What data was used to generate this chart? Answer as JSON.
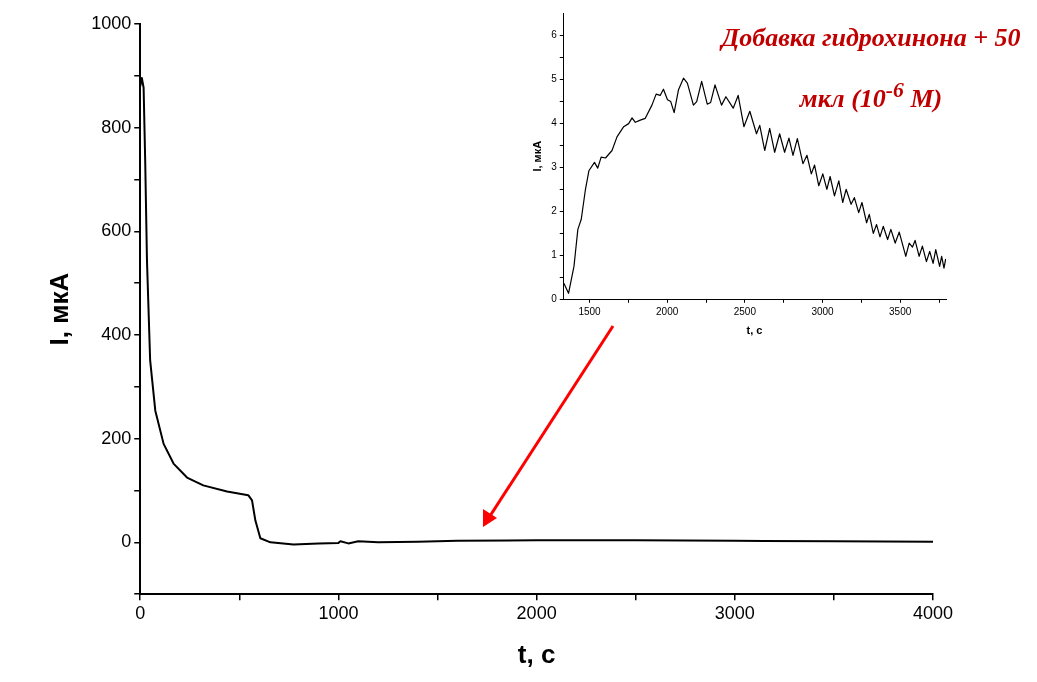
{
  "chart_data": [
    {
      "type": "line",
      "xlabel": "t, с",
      "ylabel": "I, мкА",
      "xlim": [
        0,
        4000
      ],
      "ylim": [
        -100,
        1000
      ],
      "xticks": [
        0,
        {
          "value": 500,
          "label": null
        },
        1000,
        {
          "value": 1500,
          "label": null
        },
        2000,
        {
          "value": 2500,
          "label": null
        },
        3000,
        {
          "value": 3500,
          "label": null
        },
        4000
      ],
      "yticks": [
        {
          "value": -100,
          "label": null
        },
        0,
        {
          "value": 100,
          "label": null
        },
        200,
        {
          "value": 300,
          "label": null
        },
        400,
        {
          "value": 500,
          "label": null
        },
        600,
        {
          "value": 700,
          "label": null
        },
        800,
        {
          "value": 900,
          "label": null
        },
        1000
      ],
      "grid": false,
      "legend": false,
      "marker": "none",
      "line_style": "solid",
      "series": [
        {
          "color": "#000000",
          "x": [
            0,
            8,
            17,
            25,
            34,
            50,
            76,
            118,
            168,
            236,
            318,
            438,
            545,
            564,
            581,
            606,
            657,
            773,
            900,
            1000,
            1010,
            1050,
            1100,
            1200,
            1400,
            1600,
            2000,
            2500,
            3000,
            3500,
            4000
          ],
          "values": [
            880,
            896,
            877,
            736,
            543,
            351,
            254,
            190,
            152,
            125,
            110,
            98,
            91,
            81,
            42,
            8,
            0,
            -4,
            -2,
            -1,
            2,
            -2,
            2,
            0,
            1,
            3,
            4,
            4,
            3,
            2,
            1
          ]
        }
      ]
    },
    {
      "type": "line",
      "xlabel": "t, с",
      "ylabel": "I, мкА",
      "xlim": [
        1330,
        3795
      ],
      "ylim": [
        0,
        6.5
      ],
      "xticks": [
        1500,
        {
          "value": 1750,
          "label": null
        },
        2000,
        {
          "value": 2250,
          "label": null
        },
        2500,
        {
          "value": 2750,
          "label": null
        },
        3000,
        {
          "value": 3250,
          "label": null
        },
        3500,
        {
          "value": 3750,
          "label": null
        }
      ],
      "yticks": [
        0,
        {
          "value": 0.5,
          "label": null
        },
        1,
        {
          "value": 1.5,
          "label": null
        },
        2,
        {
          "value": 2.5,
          "label": null
        },
        3,
        {
          "value": 3.5,
          "label": null
        },
        4,
        {
          "value": 4.5,
          "label": null
        },
        5,
        {
          "value": 5.5,
          "label": null
        },
        6
      ],
      "grid": false,
      "legend": false,
      "marker": "none",
      "line_style": "solid",
      "annotations": [
        "Добавка гидрохинона + 50 мкл (10$^{-6}$ M)"
      ],
      "series": [
        {
          "color": "#000000",
          "x": [
            1335,
            1365,
            1400,
            1425,
            1447,
            1474,
            1496,
            1532,
            1553,
            1575,
            1603,
            1645,
            1677,
            1720,
            1752,
            1774,
            1795,
            1827,
            1859,
            1902,
            1929,
            1955,
            1976,
            2002,
            2023,
            2045,
            2073,
            2105,
            2130,
            2169,
            2190,
            2222,
            2258,
            2280,
            2308,
            2350,
            2378,
            2425,
            2457,
            2494,
            2532,
            2575,
            2596,
            2628,
            2660,
            2692,
            2724,
            2756,
            2784,
            2810,
            2838,
            2874,
            2900,
            2928,
            2949,
            2976,
            3002,
            3028,
            3049,
            3077,
            3105,
            3130,
            3152,
            3184,
            3205,
            3233,
            3254,
            3284,
            3301,
            3327,
            3348,
            3370,
            3391,
            3419,
            3440,
            3468,
            3494,
            3536,
            3558,
            3579,
            3596,
            3622,
            3643,
            3669,
            3690,
            3712,
            3729,
            3754,
            3767,
            3782,
            3793
          ],
          "values": [
            0.37,
            0.14,
            0.75,
            1.59,
            1.82,
            2.5,
            2.92,
            3.11,
            2.98,
            3.23,
            3.21,
            3.38,
            3.69,
            3.92,
            3.99,
            4.12,
            4.02,
            4.07,
            4.11,
            4.41,
            4.66,
            4.63,
            4.77,
            4.53,
            4.49,
            4.24,
            4.76,
            5.02,
            4.91,
            4.41,
            4.49,
            4.95,
            4.43,
            4.47,
            4.87,
            4.41,
            4.6,
            4.34,
            4.63,
            3.92,
            4.27,
            3.76,
            3.95,
            3.38,
            3.88,
            3.34,
            3.76,
            3.34,
            3.66,
            3.27,
            3.65,
            3.08,
            3.27,
            2.85,
            3.05,
            2.58,
            2.85,
            2.5,
            2.79,
            2.35,
            2.69,
            2.2,
            2.5,
            2.16,
            2.31,
            1.97,
            2.2,
            1.74,
            1.93,
            1.5,
            1.7,
            1.42,
            1.66,
            1.36,
            1.59,
            1.28,
            1.53,
            0.98,
            1.28,
            1.19,
            1.34,
            0.98,
            1.21,
            0.86,
            1.09,
            0.82,
            1.13,
            0.75,
            0.98,
            0.71,
            0.92
          ]
        }
      ]
    }
  ]
}
